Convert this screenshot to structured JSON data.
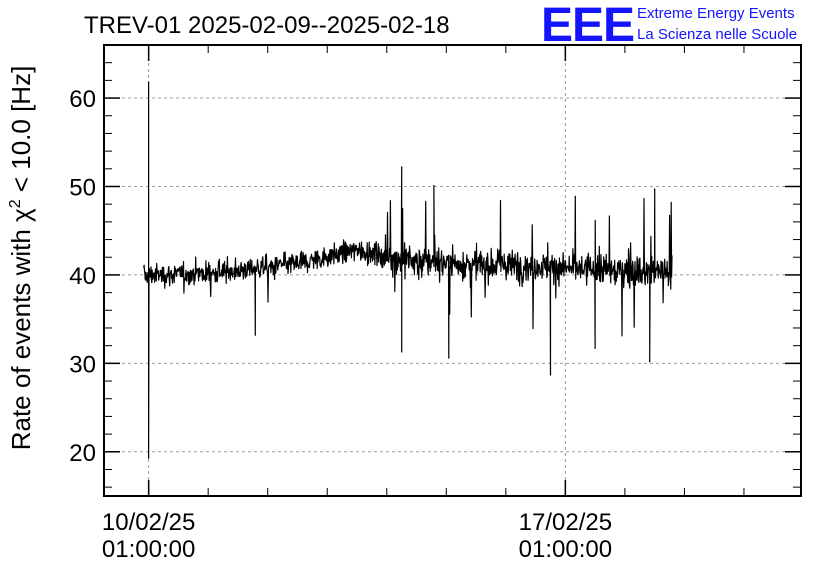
{
  "logo": {
    "mark": "EEE",
    "line1": "Extreme Energy Events",
    "line2": "La Scienza nelle Scuole",
    "color": "#1414ff"
  },
  "chart_data": {
    "type": "line",
    "title": "TREV-01 2025-02-09--2025-02-18",
    "xlabel": "",
    "ylabel_prefix": "Rate of events with ",
    "ylabel_symbol": "χ",
    "ylabel_superscript": "2",
    "ylabel_suffix": " < 10.0 [Hz]",
    "xlim": [
      "2025-02-09T07:00:00",
      "2025-02-21T00:00:00"
    ],
    "ylim": [
      15,
      66
    ],
    "yticks": [
      20,
      30,
      40,
      50,
      60
    ],
    "xticks": [
      {
        "x": "2025-02-10T01:00:00",
        "label_date": "10/02/25",
        "label_time": "01:00:00"
      },
      {
        "x": "2025-02-17T01:00:00",
        "label_date": "17/02/25",
        "label_time": "01:00:00"
      }
    ],
    "grid": true,
    "line_color": "#000000",
    "series": [
      {
        "x_start": "2025-02-09T23:00:00",
        "x_end": "2025-02-18T20:00:00",
        "baseline": [
          {
            "x": "2025-02-09T23:00:00",
            "y": 40.0
          },
          {
            "x": "2025-02-10T06:00:00",
            "y": 40.0
          },
          {
            "x": "2025-02-11T00:00:00",
            "y": 40.2
          },
          {
            "x": "2025-02-12T00:00:00",
            "y": 40.8
          },
          {
            "x": "2025-02-12T12:00:00",
            "y": 41.3
          },
          {
            "x": "2025-02-13T00:00:00",
            "y": 42.0
          },
          {
            "x": "2025-02-13T12:00:00",
            "y": 42.8
          },
          {
            "x": "2025-02-14T00:00:00",
            "y": 42.2
          },
          {
            "x": "2025-02-14T12:00:00",
            "y": 41.6
          },
          {
            "x": "2025-02-15T12:00:00",
            "y": 41.2
          },
          {
            "x": "2025-02-16T12:00:00",
            "y": 41.0
          },
          {
            "x": "2025-02-17T12:00:00",
            "y": 40.6
          },
          {
            "x": "2025-02-18T20:00:00",
            "y": 40.3
          }
        ],
        "notable_points": [
          {
            "x": "2025-02-10T01:00:00",
            "y": 61.8
          },
          {
            "x": "2025-02-10T01:00:00",
            "y": 19.3
          },
          {
            "x": "2025-02-11T20:00:00",
            "y": 33.2
          },
          {
            "x": "2025-02-14T07:00:00",
            "y": 52.2
          },
          {
            "x": "2025-02-14T07:00:00",
            "y": 31.3
          },
          {
            "x": "2025-02-14T20:00:00",
            "y": 50.1
          },
          {
            "x": "2025-02-15T02:00:00",
            "y": 30.6
          },
          {
            "x": "2025-02-16T19:00:00",
            "y": 28.7
          },
          {
            "x": "2025-02-17T13:00:00",
            "y": 31.7
          },
          {
            "x": "2025-02-18T13:00:00",
            "y": 49.7
          },
          {
            "x": "2025-02-18T11:00:00",
            "y": 30.2
          }
        ]
      }
    ]
  }
}
